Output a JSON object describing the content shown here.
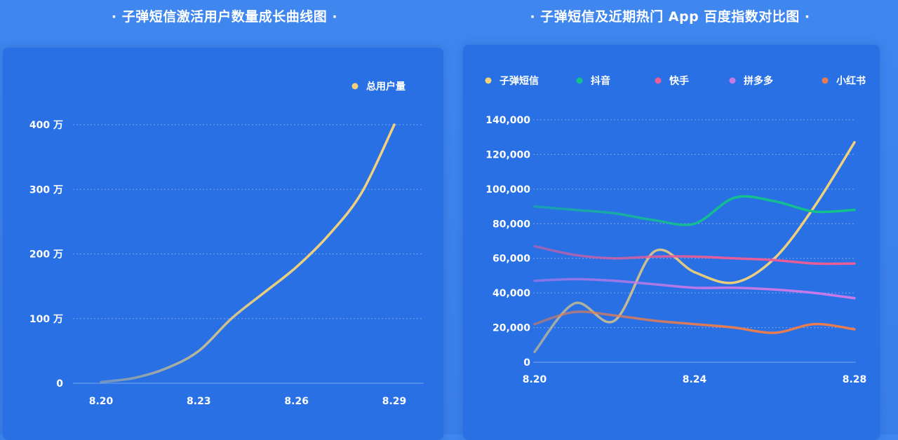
{
  "chart_data": [
    {
      "type": "line",
      "title": "· 子弹短信激活用户数量成长曲线图 ·",
      "x": [
        "8.20",
        "8.21",
        "8.22",
        "8.23",
        "8.24",
        "8.25",
        "8.26",
        "8.27",
        "8.28",
        "8.29"
      ],
      "x_tick_labels": [
        "8.20",
        "8.23",
        "8.26",
        "8.29"
      ],
      "y_tick_labels": [
        "0",
        "100 万",
        "200 万",
        "300 万",
        "400 万"
      ],
      "ylim": [
        0,
        4000000
      ],
      "y_unit": "万",
      "series": [
        {
          "name": "总用户量",
          "color": "#f3d27a",
          "values": [
            20000,
            80000,
            230000,
            500000,
            1000000,
            1400000,
            1800000,
            2300000,
            2950000,
            4000000
          ]
        }
      ],
      "legend_position": "top-right",
      "grid": "horizontal-dotted"
    },
    {
      "type": "line",
      "title": "· 子弹短信及近期热门 App 百度指数对比图 ·",
      "x": [
        "8.20",
        "8.21",
        "8.22",
        "8.23",
        "8.24",
        "8.25",
        "8.26",
        "8.27",
        "8.28"
      ],
      "x_tick_labels": [
        "8.20",
        "8.24",
        "8.28"
      ],
      "y_tick_labels": [
        "0",
        "20,000",
        "40,000",
        "60,000",
        "80,000",
        "100,000",
        "120,000",
        "140,000"
      ],
      "ylim": [
        0,
        140000
      ],
      "series": [
        {
          "name": "子弹短信",
          "color": "#f3d27a",
          "values": [
            6000,
            34000,
            24000,
            64000,
            52000,
            46000,
            60000,
            90000,
            127000
          ]
        },
        {
          "name": "抖音",
          "color": "#12c28a",
          "values": [
            90000,
            88000,
            86000,
            82000,
            80000,
            95000,
            93000,
            87000,
            88000
          ]
        },
        {
          "name": "快手",
          "color": "#ea5d97",
          "values": [
            67000,
            62000,
            60000,
            61000,
            61000,
            60000,
            59000,
            57000,
            57000
          ]
        },
        {
          "name": "拼多多",
          "color": "#c879e8",
          "values": [
            47000,
            48000,
            47000,
            45000,
            43000,
            43000,
            42000,
            40000,
            37000
          ]
        },
        {
          "name": "小红书",
          "color": "#e97c4f",
          "values": [
            22000,
            29000,
            27000,
            24000,
            22000,
            20000,
            17000,
            22000,
            19000
          ]
        }
      ],
      "legend_position": "top",
      "grid": "horizontal-dotted"
    }
  ]
}
